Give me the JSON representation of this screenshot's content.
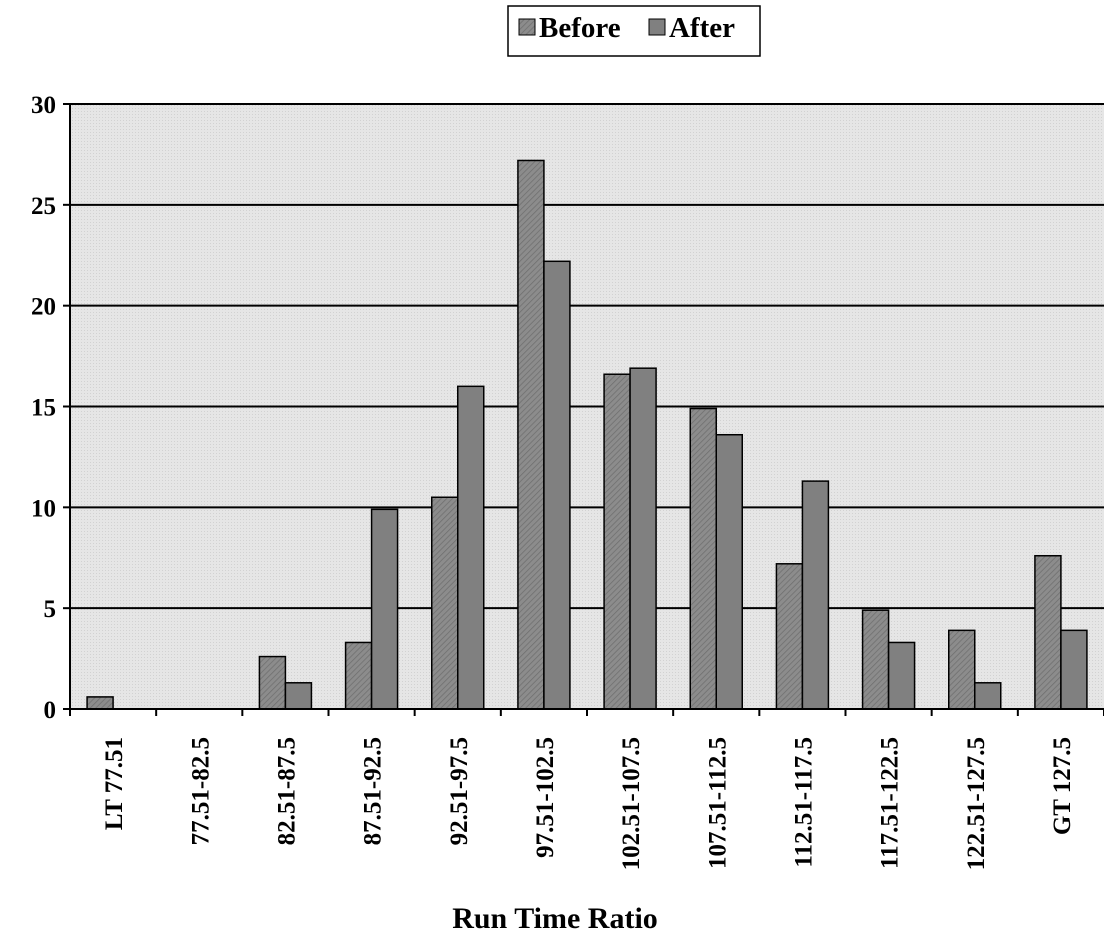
{
  "chart_data": {
    "type": "bar",
    "title": "",
    "xlabel": "Run Time Ratio",
    "ylabel": "",
    "ylim": [
      0,
      30
    ],
    "yticks": [
      0,
      5,
      10,
      15,
      20,
      25,
      30
    ],
    "grid": true,
    "legend_position": "top-center",
    "categories": [
      "LT 77.51",
      "77.51-82.5",
      "82.51-87.5",
      "87.51-92.5",
      "92.51-97.5",
      "97.51-102.5",
      "102.51-107.5",
      "107.51-112.5",
      "112.51-117.5",
      "117.51-122.5",
      "122.51-127.5",
      "GT 127.5"
    ],
    "series": [
      {
        "name": "Before",
        "values": [
          0.6,
          0,
          2.6,
          3.3,
          10.5,
          27.2,
          16.6,
          14.9,
          7.2,
          4.9,
          3.9,
          7.6
        ]
      },
      {
        "name": "After",
        "values": [
          0,
          0,
          1.3,
          9.9,
          16.0,
          22.2,
          16.9,
          13.6,
          11.3,
          3.3,
          1.3,
          3.9
        ]
      }
    ],
    "colors": {
      "plot_background": "#e6e6e6",
      "before_fill": "#8c8c8c",
      "after_fill": "#808080",
      "bar_stroke": "#000000",
      "gridline": "#000000"
    }
  }
}
